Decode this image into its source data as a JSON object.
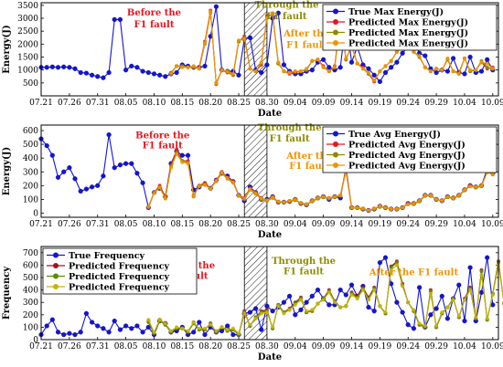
{
  "chart_data": [
    {
      "type": "line",
      "ylabel": "Energy(J)",
      "xlabel": "Date",
      "ylim": [
        0,
        3600
      ],
      "yticks": [
        500,
        1000,
        1500,
        2000,
        2500,
        3000,
        3500
      ],
      "xlim": [
        0,
        81
      ],
      "xtick_labels": [
        "07.21",
        "07.26",
        "07.31",
        "08.05",
        "08.10",
        "08.15",
        "08.20",
        "08.25",
        "08.30",
        "09.04",
        "09.09",
        "09.14",
        "09.19",
        "09.24",
        "09.29",
        "10.04",
        "10.09"
      ],
      "fault_band": [
        36,
        40
      ],
      "legend_position": "top-right",
      "annotations": [
        {
          "text": "Before the",
          "x": 20,
          "y": 3100,
          "color": "#e8141e"
        },
        {
          "text": "F1 fault",
          "x": 20,
          "y": 2650,
          "color": "#e8141e"
        },
        {
          "text": "Through the",
          "x": 43.5,
          "y": 3400,
          "color": "#8c8c00"
        },
        {
          "text": "F1 fault",
          "x": 43.5,
          "y": 2960,
          "color": "#8c8c00"
        },
        {
          "text": "After the",
          "x": 47,
          "y": 2300,
          "color": "#f09400"
        },
        {
          "text": "F1 fault",
          "x": 47,
          "y": 1860,
          "color": "#f09400"
        }
      ],
      "series": [
        {
          "name": "True Max Energy(J)",
          "color": "#1414d8",
          "start": 0,
          "values": [
            1100,
            1100,
            1120,
            1100,
            1120,
            1100,
            1050,
            900,
            880,
            800,
            750,
            700,
            900,
            2950,
            2950,
            1000,
            1150,
            1100,
            950,
            900,
            850,
            800,
            750,
            850,
            900,
            1200,
            1150,
            1100,
            1100,
            1150,
            2300,
            3450,
            1000,
            950,
            950,
            800,
            2200,
            2250,
            1000,
            900,
            1200,
            3000,
            3200,
            1200,
            950,
            850,
            850,
            950,
            1000,
            1300,
            1400,
            1100,
            1000,
            1100,
            3000,
            1300,
            1900,
            1200,
            1050,
            800,
            550,
            900,
            1100,
            1300,
            1650,
            1900,
            2100,
            1650,
            1550,
            1050,
            900,
            1000,
            950,
            1450,
            900,
            850,
            1500,
            900,
            950,
            1400,
            1000
          ]
        },
        {
          "name": "Predicted Max Energy(J)",
          "color": "#e8141e",
          "start": 23,
          "values": [
            880,
            1150,
            1150,
            1100,
            1120,
            1100,
            2100,
            3300,
            450,
            1000,
            900,
            800,
            2100,
            2300,
            1050,
            950,
            1200,
            3100,
            3150,
            1250,
            950,
            850,
            900,
            950,
            1000,
            1350,
            1400,
            1150,
            950,
            1150,
            3050,
            1400,
            1950,
            1250,
            1100,
            850,
            550,
            950,
            1150,
            1350,
            1700,
            1900,
            2050,
            1700,
            1500,
            1100,
            950,
            1050,
            1000,
            1400,
            950,
            900,
            1450,
            950,
            1000,
            1300,
            1050,
            1100
          ]
        },
        {
          "name": "Predicted Max Energy(J)",
          "color": "#8c8c00",
          "start": 23,
          "values": [
            900,
            1150,
            1150,
            1100,
            1100,
            1050,
            2000,
            3200,
            500,
            1000,
            900,
            800,
            2100,
            2250,
            1050,
            950,
            1250,
            3050,
            3150,
            1250,
            950,
            900,
            950,
            950,
            1000,
            1350,
            1400,
            1100,
            950,
            1100,
            3000,
            1400,
            1950,
            1250,
            1050,
            850,
            600,
            950,
            1150,
            1350,
            1700,
            1900,
            2000,
            1700,
            1500,
            1100,
            950,
            1050,
            1000,
            1400,
            950,
            850,
            1450,
            950,
            1000,
            1350,
            1100,
            1050
          ]
        },
        {
          "name": "Predicted Max Energy(J)",
          "color": "#f09400",
          "start": 23,
          "values": [
            850,
            1150,
            1100,
            1100,
            1150,
            1050,
            2050,
            3250,
            480,
            1000,
            950,
            850,
            2150,
            2200,
            1050,
            950,
            1300,
            3000,
            3200,
            1300,
            950,
            900,
            950,
            950,
            1050,
            1350,
            1400,
            1100,
            950,
            1100,
            2950,
            1450,
            1900,
            1250,
            1050,
            900,
            600,
            950,
            1150,
            1350,
            1700,
            1950,
            2000,
            1700,
            1550,
            1100,
            950,
            1050,
            1000,
            1450,
            950,
            850,
            1450,
            1000,
            1000,
            1300,
            1250,
            1050
          ]
        }
      ]
    },
    {
      "type": "line",
      "ylabel": "Energy(J)",
      "xlabel": "Date",
      "ylim": [
        -30,
        640
      ],
      "yticks": [
        0,
        100,
        200,
        300,
        400,
        500,
        600
      ],
      "xlim": [
        0,
        81
      ],
      "xtick_labels": [
        "07.21",
        "07.26",
        "07.31",
        "08.05",
        "08.10",
        "08.15",
        "08.20",
        "08.25",
        "08.30",
        "09.04",
        "09.09",
        "09.14",
        "09.19",
        "09.24",
        "09.29",
        "10.04",
        "10.09"
      ],
      "fault_band": [
        36,
        40
      ],
      "legend_position": "top-right",
      "annotations": [
        {
          "text": "Before the",
          "x": 21.5,
          "y": 545,
          "color": "#e8141e"
        },
        {
          "text": "F1 fault",
          "x": 21.5,
          "y": 470,
          "color": "#e8141e"
        },
        {
          "text": "Through the",
          "x": 44,
          "y": 600,
          "color": "#8c8c00"
        },
        {
          "text": "F1 fault",
          "x": 44,
          "y": 520,
          "color": "#8c8c00"
        },
        {
          "text": "After the",
          "x": 47.5,
          "y": 395,
          "color": "#f09400"
        },
        {
          "text": "F1 fault",
          "x": 47.5,
          "y": 320,
          "color": "#f09400"
        }
      ],
      "series": [
        {
          "name": "True Avg Energy(J)",
          "color": "#1414d8",
          "start": 0,
          "values": [
            540,
            490,
            420,
            260,
            300,
            330,
            250,
            160,
            175,
            190,
            200,
            270,
            570,
            330,
            350,
            360,
            360,
            290,
            220,
            40,
            150,
            180,
            120,
            360,
            450,
            420,
            420,
            170,
            190,
            210,
            180,
            240,
            290,
            270,
            230,
            130,
            90,
            190,
            150,
            100,
            100,
            120,
            80,
            80,
            85,
            100,
            70,
            60,
            90,
            110,
            120,
            100,
            120,
            110,
            330,
            40,
            40,
            30,
            20,
            30,
            50,
            40,
            30,
            30,
            40,
            70,
            70,
            90,
            130,
            130,
            100,
            90,
            120,
            110,
            130,
            170,
            200,
            190,
            200,
            320,
            290
          ]
        },
        {
          "name": "Predicted Avg Energy(J)",
          "color": "#e8141e",
          "start": 19,
          "values": [
            40,
            150,
            200,
            120,
            350,
            460,
            380,
            380,
            130,
            200,
            220,
            180,
            240,
            300,
            260,
            230,
            130,
            110,
            180,
            150,
            110,
            90,
            120,
            80,
            80,
            85,
            100,
            70,
            60,
            90,
            110,
            120,
            110,
            120,
            130,
            320,
            40,
            40,
            30,
            20,
            30,
            50,
            40,
            30,
            30,
            40,
            70,
            70,
            90,
            130,
            130,
            100,
            90,
            120,
            110,
            130,
            170,
            200,
            190,
            200,
            300,
            290
          ]
        },
        {
          "name": "Predicted Avg Energy(J)",
          "color": "#8c8c00",
          "start": 19,
          "values": [
            50,
            150,
            190,
            110,
            340,
            440,
            380,
            370,
            120,
            200,
            210,
            180,
            230,
            290,
            250,
            220,
            130,
            100,
            170,
            140,
            100,
            90,
            110,
            80,
            80,
            85,
            95,
            70,
            60,
            85,
            105,
            115,
            105,
            115,
            125,
            310,
            40,
            35,
            30,
            20,
            30,
            45,
            40,
            30,
            30,
            40,
            65,
            65,
            85,
            125,
            125,
            100,
            90,
            115,
            105,
            125,
            165,
            195,
            185,
            195,
            300,
            280
          ]
        },
        {
          "name": "Predicted Avg Energy(J)",
          "color": "#f09400",
          "start": 19,
          "values": [
            45,
            145,
            185,
            105,
            330,
            430,
            370,
            360,
            125,
            195,
            205,
            175,
            235,
            295,
            255,
            225,
            125,
            105,
            175,
            145,
            105,
            95,
            115,
            85,
            80,
            90,
            100,
            75,
            65,
            90,
            110,
            120,
            110,
            120,
            130,
            300,
            40,
            40,
            35,
            20,
            35,
            50,
            40,
            30,
            30,
            40,
            65,
            70,
            90,
            130,
            130,
            100,
            90,
            120,
            110,
            130,
            170,
            195,
            190,
            200,
            295,
            285
          ]
        }
      ]
    },
    {
      "type": "line",
      "ylabel": "Frequency",
      "xlabel": "Date",
      "ylim": [
        0,
        750
      ],
      "yticks": [
        0,
        100,
        200,
        300,
        400,
        500,
        600,
        700
      ],
      "xlim": [
        0,
        81
      ],
      "xtick_labels": [
        "07.21",
        "07.26",
        "07.31",
        "08.05",
        "08.10",
        "08.15",
        "08.20",
        "08.25",
        "08.30",
        "09.04",
        "09.09",
        "09.14",
        "09.19",
        "09.24",
        "09.29",
        "10.04",
        "10.09"
      ],
      "fault_band": [
        36,
        40
      ],
      "legend_position": "top-left",
      "annotations": [
        {
          "text": "Before the",
          "x": 26,
          "y": 575,
          "color": "#e8141e"
        },
        {
          "text": "F1 fault",
          "x": 26,
          "y": 490,
          "color": "#e8141e"
        },
        {
          "text": "Through the",
          "x": 46.5,
          "y": 610,
          "color": "#8c8c00"
        },
        {
          "text": "F1 fault",
          "x": 46.5,
          "y": 525,
          "color": "#8c8c00"
        },
        {
          "text": "After the F1 fault",
          "x": 66,
          "y": 520,
          "color": "#f09400"
        }
      ],
      "series": [
        {
          "name": "True Frequency",
          "color": "#1414d8",
          "start": 0,
          "values": [
            40,
            110,
            160,
            60,
            40,
            50,
            40,
            60,
            210,
            140,
            110,
            90,
            60,
            150,
            80,
            110,
            90,
            110,
            60,
            100,
            40,
            150,
            130,
            60,
            70,
            100,
            40,
            60,
            140,
            40,
            100,
            60,
            70,
            110,
            40,
            40,
            210,
            220,
            250,
            80,
            270,
            230,
            260,
            300,
            350,
            200,
            240,
            300,
            350,
            400,
            330,
            280,
            280,
            400,
            360,
            440,
            350,
            430,
            260,
            230,
            620,
            660,
            450,
            300,
            220,
            120,
            90,
            420,
            100,
            200,
            250,
            350,
            170,
            330,
            440,
            150,
            580,
            150,
            380,
            660,
            280
          ]
        },
        {
          "name": "Predicted Frequency",
          "color": "#a0141e",
          "start": 19,
          "values": [
            150,
            50,
            160,
            120,
            60,
            90,
            90,
            60,
            140,
            80,
            80,
            130,
            60,
            100,
            70,
            80,
            40,
            230,
            110,
            180,
            230,
            240,
            90,
            280,
            220,
            250,
            300,
            340,
            220,
            230,
            290,
            330,
            400,
            310,
            260,
            270,
            380,
            350,
            420,
            340,
            420,
            270,
            210,
            590,
            630,
            450,
            300,
            230,
            120,
            100,
            400,
            100,
            210,
            260,
            330,
            180,
            330,
            420,
            170,
            560,
            160,
            370,
            630,
            290
          ]
        },
        {
          "name": "Predicted Frequency",
          "color": "#5a8c00",
          "start": 19,
          "values": [
            140,
            50,
            150,
            120,
            60,
            90,
            90,
            60,
            130,
            80,
            80,
            130,
            60,
            100,
            70,
            80,
            40,
            220,
            110,
            180,
            220,
            230,
            90,
            280,
            220,
            240,
            290,
            330,
            220,
            230,
            290,
            330,
            390,
            310,
            260,
            270,
            370,
            340,
            410,
            330,
            410,
            270,
            210,
            580,
            620,
            440,
            300,
            230,
            120,
            100,
            390,
            100,
            210,
            260,
            330,
            180,
            320,
            410,
            170,
            550,
            160,
            370,
            620,
            290
          ]
        },
        {
          "name": "Predicted Frequency",
          "color": "#c8b400",
          "start": 19,
          "values": [
            160,
            60,
            160,
            130,
            70,
            100,
            90,
            70,
            140,
            90,
            90,
            120,
            70,
            100,
            80,
            90,
            50,
            210,
            120,
            170,
            210,
            220,
            100,
            270,
            210,
            240,
            280,
            320,
            230,
            240,
            290,
            320,
            380,
            300,
            260,
            270,
            360,
            330,
            400,
            320,
            400,
            270,
            220,
            560,
            600,
            430,
            300,
            240,
            130,
            110,
            370,
            110,
            220,
            260,
            320,
            190,
            320,
            400,
            180,
            520,
            170,
            360,
            600,
            300
          ]
        }
      ]
    }
  ]
}
